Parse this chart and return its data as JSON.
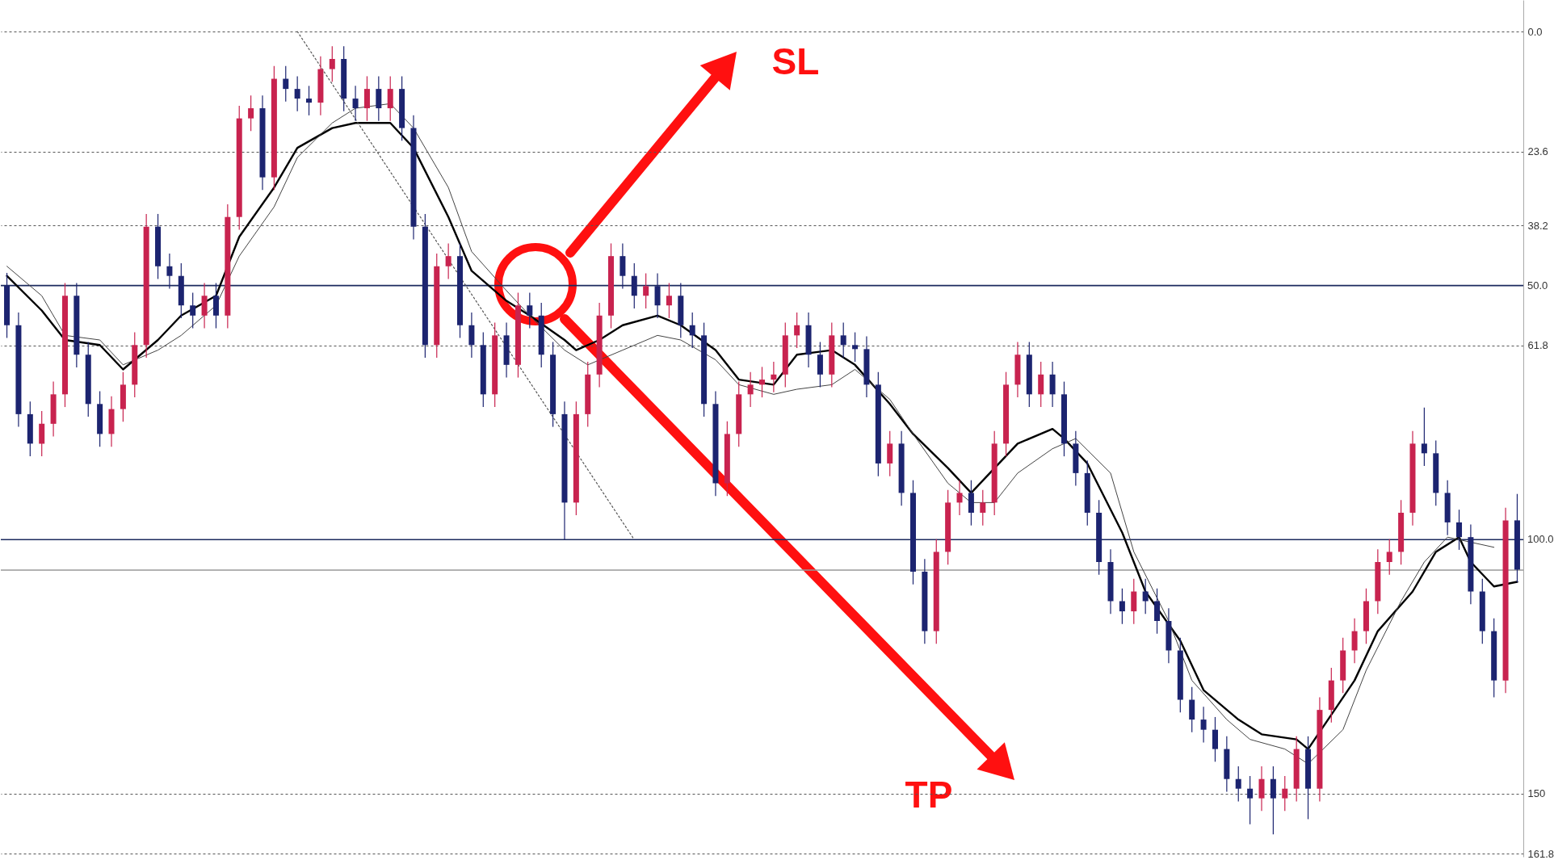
{
  "chart_data": {
    "type": "candlestick",
    "categories": [
      null,
      null,
      null,
      null,
      null,
      null,
      null,
      null,
      null,
      null,
      null,
      null,
      null,
      null,
      null,
      null,
      null,
      null,
      null,
      null,
      null,
      null,
      null,
      null,
      null,
      null,
      null,
      null,
      null,
      null,
      null,
      null,
      null,
      null,
      null,
      null,
      null,
      null,
      null,
      null,
      null,
      null,
      null,
      null,
      null,
      null,
      null,
      null,
      null,
      null,
      null,
      null,
      null,
      null,
      null,
      null,
      null,
      null,
      null,
      null,
      null,
      null,
      null,
      null,
      null,
      null,
      null,
      null,
      null,
      null,
      null,
      null,
      null,
      null,
      null,
      null,
      null,
      null,
      null,
      null,
      null,
      null,
      null,
      null,
      null,
      null,
      null,
      null,
      null,
      null,
      null,
      null,
      null,
      null,
      null,
      null,
      null,
      null,
      null,
      null,
      null,
      null,
      null,
      null,
      null,
      null,
      null,
      null,
      null,
      null,
      null,
      null,
      null,
      null,
      null,
      null,
      null,
      null,
      null,
      null,
      null,
      null,
      null,
      null,
      null,
      null,
      null,
      null,
      null,
      null,
      null
    ],
    "ohlc": [
      [
        50.0,
        60.3,
        47.5,
        57.8
      ],
      [
        57.8,
        77.8,
        55.3,
        75.3
      ],
      [
        75.3,
        83.6,
        72.8,
        81.1
      ],
      [
        81.1,
        83.6,
        74.7,
        77.2
      ],
      [
        77.2,
        79.7,
        68.9,
        71.4
      ],
      [
        71.4,
        73.9,
        49.5,
        52.0
      ],
      [
        52.0,
        66.1,
        49.5,
        63.6
      ],
      [
        63.6,
        75.8,
        61.1,
        73.3
      ],
      [
        73.3,
        81.7,
        70.8,
        79.2
      ],
      [
        79.2,
        81.7,
        71.8,
        74.3
      ],
      [
        74.3,
        76.8,
        67.0,
        69.5
      ],
      [
        69.5,
        72.0,
        59.2,
        61.7
      ],
      [
        61.7,
        64.2,
        35.9,
        38.4
      ],
      [
        38.4,
        48.7,
        35.9,
        46.2
      ],
      [
        46.2,
        50.6,
        43.7,
        48.1
      ],
      [
        48.1,
        56.4,
        45.6,
        53.9
      ],
      [
        53.9,
        58.4,
        51.4,
        55.9
      ],
      [
        55.9,
        58.4,
        49.5,
        52.0
      ],
      [
        52.0,
        58.4,
        49.5,
        55.9
      ],
      [
        55.9,
        58.4,
        34.0,
        36.5
      ],
      [
        36.5,
        39.0,
        14.6,
        17.1
      ],
      [
        17.1,
        19.6,
        12.6,
        15.1
      ],
      [
        15.1,
        31.2,
        12.6,
        28.7
      ],
      [
        28.7,
        31.2,
        6.8,
        9.3
      ],
      [
        9.3,
        13.8,
        6.8,
        11.3
      ],
      [
        11.3,
        15.7,
        8.8,
        13.2
      ],
      [
        13.2,
        16.5,
        10.7,
        14.0
      ],
      [
        14.0,
        16.5,
        4.9,
        7.4
      ],
      [
        7.4,
        9.9,
        2.9,
        5.4
      ],
      [
        5.4,
        15.7,
        2.9,
        13.2
      ],
      [
        13.2,
        17.6,
        10.7,
        15.1
      ],
      [
        15.1,
        17.6,
        8.8,
        11.3
      ],
      [
        11.3,
        17.6,
        8.8,
        15.1
      ],
      [
        15.1,
        17.6,
        8.8,
        11.3
      ],
      [
        11.3,
        21.5,
        8.8,
        19.0
      ],
      [
        19.0,
        40.9,
        16.5,
        38.4
      ],
      [
        38.4,
        64.2,
        35.9,
        61.7
      ],
      [
        61.7,
        64.2,
        43.7,
        46.2
      ],
      [
        46.2,
        48.7,
        41.7,
        44.2
      ],
      [
        44.2,
        60.3,
        41.7,
        57.8
      ],
      [
        57.8,
        64.2,
        55.3,
        61.7
      ],
      [
        61.7,
        73.9,
        59.2,
        71.4
      ],
      [
        71.4,
        73.9,
        57.3,
        59.8
      ],
      [
        59.8,
        68.1,
        57.3,
        65.6
      ],
      [
        65.6,
        68.1,
        51.4,
        53.9
      ],
      [
        53.9,
        58.4,
        51.4,
        55.9
      ],
      [
        55.9,
        66.1,
        53.4,
        63.6
      ],
      [
        63.6,
        77.8,
        61.1,
        75.3
      ],
      [
        75.3,
        100.0,
        72.8,
        92.7
      ],
      [
        92.7,
        95.2,
        72.8,
        75.3
      ],
      [
        75.3,
        77.8,
        65.0,
        67.5
      ],
      [
        67.5,
        70.0,
        53.4,
        55.9
      ],
      [
        55.9,
        58.4,
        41.7,
        44.2
      ],
      [
        44.2,
        50.6,
        41.7,
        48.1
      ],
      [
        48.1,
        54.5,
        45.6,
        52.0
      ],
      [
        52.0,
        54.5,
        47.6,
        50.1
      ],
      [
        50.1,
        56.4,
        47.6,
        53.9
      ],
      [
        53.9,
        56.4,
        49.5,
        52.0
      ],
      [
        52.0,
        60.3,
        49.5,
        57.8
      ],
      [
        57.8,
        62.3,
        55.3,
        59.8
      ],
      [
        59.8,
        75.8,
        57.3,
        73.3
      ],
      [
        73.3,
        91.4,
        70.8,
        88.9
      ],
      [
        88.9,
        91.4,
        76.7,
        79.2
      ],
      [
        79.2,
        81.7,
        68.9,
        71.4
      ],
      [
        71.4,
        73.9,
        67.0,
        69.5
      ],
      [
        69.5,
        72.0,
        66.0,
        68.5
      ],
      [
        68.5,
        71.0,
        65.0,
        67.5
      ],
      [
        67.5,
        70.0,
        57.3,
        59.8
      ],
      [
        59.8,
        62.3,
        55.3,
        57.8
      ],
      [
        57.8,
        66.1,
        55.3,
        63.6
      ],
      [
        63.6,
        70.0,
        61.1,
        67.5
      ],
      [
        67.5,
        70.0,
        57.3,
        59.8
      ],
      [
        59.8,
        64.2,
        57.3,
        61.7
      ],
      [
        61.7,
        65.0,
        59.2,
        62.5
      ],
      [
        62.5,
        72.0,
        60.0,
        69.5
      ],
      [
        69.5,
        87.5,
        67.0,
        85.0
      ],
      [
        85.0,
        87.5,
        78.6,
        81.1
      ],
      [
        81.1,
        93.3,
        78.6,
        90.8
      ],
      [
        90.8,
        108.8,
        88.3,
        106.3
      ],
      [
        106.3,
        120.5,
        103.8,
        118.0
      ],
      [
        118.0,
        120.5,
        99.9,
        102.4
      ],
      [
        102.4,
        104.9,
        90.2,
        92.7
      ],
      [
        92.7,
        95.2,
        88.3,
        90.8
      ],
      [
        90.8,
        97.2,
        88.3,
        94.7
      ],
      [
        94.7,
        97.2,
        90.2,
        92.7
      ],
      [
        92.7,
        95.2,
        78.6,
        81.1
      ],
      [
        81.1,
        83.6,
        67.0,
        69.5
      ],
      [
        69.5,
        72.0,
        61.1,
        63.6
      ],
      [
        63.6,
        73.9,
        61.1,
        71.4
      ],
      [
        71.4,
        73.9,
        65.0,
        67.5
      ],
      [
        67.5,
        73.9,
        65.0,
        71.4
      ],
      [
        71.4,
        83.6,
        68.9,
        81.1
      ],
      [
        81.1,
        89.4,
        78.6,
        86.9
      ],
      [
        86.9,
        97.2,
        84.4,
        94.7
      ],
      [
        94.7,
        106.9,
        92.2,
        104.4
      ],
      [
        104.4,
        114.6,
        101.9,
        112.1
      ],
      [
        112.1,
        116.6,
        109.6,
        114.1
      ],
      [
        114.1,
        116.6,
        107.7,
        110.2
      ],
      [
        110.2,
        114.6,
        107.7,
        112.1
      ],
      [
        112.1,
        118.5,
        109.6,
        116.0
      ],
      [
        116.0,
        124.3,
        113.5,
        121.8
      ],
      [
        121.8,
        134.0,
        119.3,
        131.5
      ],
      [
        131.5,
        137.9,
        129.0,
        135.4
      ],
      [
        135.4,
        139.9,
        132.9,
        137.4
      ],
      [
        137.4,
        143.7,
        134.9,
        141.2
      ],
      [
        141.2,
        149.6,
        138.7,
        147.1
      ],
      [
        147.1,
        151.5,
        144.6,
        149.0
      ],
      [
        149.0,
        156.0,
        146.5,
        150.9
      ],
      [
        150.9,
        153.4,
        144.6,
        147.1
      ],
      [
        147.1,
        158.0,
        144.6,
        150.9
      ],
      [
        150.9,
        153.4,
        146.5,
        149.0
      ],
      [
        149.0,
        151.5,
        138.7,
        141.2
      ],
      [
        141.2,
        155.0,
        138.7,
        149.0
      ],
      [
        149.0,
        151.5,
        131.0,
        133.5
      ],
      [
        133.5,
        136.0,
        125.2,
        127.7
      ],
      [
        127.7,
        130.2,
        119.3,
        121.8
      ],
      [
        121.8,
        124.3,
        115.5,
        118.0
      ],
      [
        118.0,
        120.5,
        109.6,
        112.1
      ],
      [
        112.1,
        114.6,
        101.9,
        104.4
      ],
      [
        104.4,
        106.9,
        99.9,
        102.4
      ],
      [
        102.4,
        104.9,
        92.2,
        94.7
      ],
      [
        94.7,
        97.2,
        78.6,
        81.1
      ],
      [
        81.1,
        85.5,
        74.0,
        83.0
      ],
      [
        83.0,
        93.3,
        80.5,
        90.8
      ],
      [
        90.8,
        99.1,
        88.3,
        96.6
      ],
      [
        96.6,
        102.0,
        94.1,
        99.5
      ],
      [
        99.5,
        112.7,
        97.0,
        110.2
      ],
      [
        110.2,
        120.5,
        107.7,
        118.0
      ],
      [
        118.0,
        131.0,
        115.5,
        127.7
      ],
      [
        127.7,
        130.2,
        93.7,
        96.2
      ],
      [
        96.2,
        108.4,
        91.0,
        105.9
      ]
    ],
    "colors": [
      "#1c2470",
      "#1c2470",
      "#1c2470",
      "#c8234f",
      "#c8234f",
      "#c8234f",
      "#1c2470",
      "#1c2470",
      "#1c2470",
      "#c8234f",
      "#c8234f",
      "#c8234f",
      "#c8234f",
      "#1c2470",
      "#1c2470",
      "#1c2470",
      "#1c2470",
      "#c8234f",
      "#1c2470",
      "#c8234f",
      "#c8234f",
      "#c8234f",
      "#1c2470",
      "#c8234f",
      "#1c2470",
      "#1c2470",
      "#1c2470",
      "#c8234f",
      "#c8234f",
      "#1c2470",
      "#1c2470",
      "#c8234f",
      "#1c2470",
      "#c8234f",
      "#1c2470",
      "#1c2470",
      "#1c2470",
      "#c8234f",
      "#c8234f",
      "#1c2470",
      "#1c2470",
      "#1c2470",
      "#c8234f",
      "#1c2470",
      "#c8234f",
      "#1c2470",
      "#1c2470",
      "#1c2470",
      "#1c2470",
      "#c8234f",
      "#c8234f",
      "#c8234f",
      "#c8234f",
      "#1c2470",
      "#1c2470",
      "#c8234f",
      "#1c2470",
      "#c8234f",
      "#1c2470",
      "#1c2470",
      "#1c2470",
      "#1c2470",
      "#c8234f",
      "#c8234f",
      "#c8234f",
      "#c8234f",
      "#c8234f",
      "#c8234f",
      "#c8234f",
      "#1c2470",
      "#1c2470",
      "#c8234f",
      "#1c2470",
      "#1c2470",
      "#1c2470",
      "#1c2470",
      "#c8234f",
      "#1c2470",
      "#1c2470",
      "#1c2470",
      "#c8234f",
      "#c8234f",
      "#c8234f",
      "#1c2470",
      "#c8234f",
      "#c8234f",
      "#c8234f",
      "#c8234f",
      "#1c2470",
      "#c8234f",
      "#1c2470",
      "#1c2470",
      "#1c2470",
      "#1c2470",
      "#1c2470",
      "#1c2470",
      "#1c2470",
      "#c8234f",
      "#1c2470",
      "#1c2470",
      "#1c2470",
      "#1c2470",
      "#1c2470",
      "#1c2470",
      "#1c2470",
      "#1c2470",
      "#1c2470",
      "#1c2470",
      "#c8234f",
      "#1c2470",
      "#c8234f",
      "#c8234f",
      "#1c2470",
      "#c8234f",
      "#c8234f",
      "#c8234f",
      "#c8234f",
      "#c8234f",
      "#c8234f",
      "#c8234f",
      "#c8234f",
      "#c8234f",
      "#1c2470",
      "#1c2470",
      "#1c2470",
      "#1c2470",
      "#1c2470",
      "#1c2470",
      "#1c2470",
      "#c8234f",
      "#1c2470"
    ],
    "series": [
      {
        "type": "line",
        "color": "#000000",
        "values": [
          48.1,
          null,
          null,
          54.9,
          null,
          60.7,
          null,
          null,
          61.7,
          null,
          66.5,
          null,
          null,
          60.7,
          null,
          55.9,
          null,
          null,
          52.0,
          null,
          40.4,
          null,
          null,
          30.7,
          null,
          22.9,
          null,
          null,
          19.0,
          null,
          18.0,
          null,
          null,
          18.0,
          null,
          22.9,
          null,
          null,
          36.5,
          null,
          47.1,
          null,
          null,
          53.0,
          null,
          55.9,
          null,
          null,
          60.7,
          62.7,
          null,
          60.7,
          null,
          57.8,
          null,
          null,
          55.9,
          null,
          57.8,
          null,
          null,
          62.7,
          null,
          68.5,
          null,
          null,
          69.5,
          null,
          63.6,
          null,
          null,
          62.7,
          null,
          65.6,
          null,
          null,
          73.3,
          null,
          79.2,
          null,
          null,
          85.9,
          null,
          90.8,
          null,
          null,
          null,
          81.1,
          null,
          null,
          78.2,
          80.1,
          null,
          85.0,
          null,
          null,
          98.6,
          null,
          110.2,
          null,
          null,
          119.9,
          null,
          129.6,
          null,
          null,
          135.4,
          null,
          138.3,
          null,
          null,
          139.3,
          141.2,
          null,
          null,
          null,
          127.7,
          null,
          118.0,
          null,
          null,
          110.2,
          null,
          102.4,
          null,
          99.5,
          104.4,
          null,
          109.2,
          null,
          108.3
        ]
      },
      {
        "type": "line",
        "color": "#444444",
        "values": [
          46.2,
          null,
          null,
          52.0,
          null,
          59.8,
          null,
          null,
          60.7,
          null,
          65.6,
          null,
          null,
          62.7,
          null,
          59.8,
          null,
          null,
          53.9,
          null,
          44.2,
          null,
          null,
          34.5,
          null,
          24.8,
          null,
          null,
          18.0,
          null,
          15.1,
          null,
          null,
          14.2,
          null,
          19.0,
          null,
          null,
          30.7,
          null,
          43.3,
          null,
          null,
          51.0,
          null,
          55.9,
          null,
          null,
          62.7,
          null,
          65.6,
          null,
          null,
          62.7,
          null,
          null,
          59.8,
          null,
          60.7,
          null,
          null,
          64.6,
          null,
          69.5,
          null,
          null,
          71.4,
          null,
          70.4,
          null,
          null,
          69.5,
          null,
          66.5,
          null,
          null,
          72.4,
          null,
          79.2,
          null,
          null,
          88.9,
          null,
          92.7,
          null,
          92.7,
          null,
          86.9,
          null,
          null,
          82.1,
          null,
          80.1,
          null,
          null,
          86.9,
          null,
          102.4,
          null,
          null,
          116.0,
          null,
          127.7,
          null,
          null,
          135.4,
          null,
          139.3,
          null,
          null,
          141.2,
          null,
          144.1,
          null,
          null,
          137.4,
          null,
          125.7,
          null,
          null,
          112.1,
          null,
          104.4,
          null,
          99.5,
          null,
          100.5,
          null,
          101.5,
          null,
          null
        ]
      },
      {
        "type": "line",
        "color": "#555555",
        "line_style": "dotted",
        "values": [
          null,
          null,
          null,
          null,
          null,
          null,
          null,
          null,
          null,
          null,
          null,
          null,
          null,
          null,
          null,
          null,
          null,
          null,
          null,
          null,
          null,
          null,
          null,
          null,
          null,
          0,
          null,
          null,
          null,
          null,
          null,
          null,
          null,
          null,
          null,
          null,
          null,
          null,
          null,
          null,
          null,
          null,
          null,
          null,
          null,
          null,
          null,
          null,
          null,
          null,
          null,
          null,
          null,
          null,
          100,
          null,
          null,
          null,
          null,
          null,
          null,
          null,
          null,
          null,
          null,
          null,
          null,
          null,
          null,
          null,
          null,
          null,
          null,
          null,
          null,
          null,
          null,
          null,
          null,
          null,
          null,
          null,
          null,
          null,
          null,
          null,
          null,
          null,
          null,
          null,
          null,
          null,
          null,
          null,
          null,
          null,
          null,
          null,
          null,
          null,
          null,
          null,
          null,
          null,
          null,
          null,
          null,
          null,
          null,
          null,
          null,
          null,
          null,
          null,
          null,
          null,
          null,
          null,
          null,
          null,
          null,
          null,
          null,
          null,
          null,
          null,
          null,
          null,
          null,
          null,
          null
        ]
      }
    ],
    "ylim": [
      162.4,
      -6.2
    ],
    "yticks": [
      {
        "value": 0,
        "label": "0.0"
      },
      23.6,
      38.2,
      61.8,
      150,
      161.8
    ],
    "grid": "y",
    "tick_labels": "y",
    "marker": "none",
    "ref_lines": [
      {
        "axis": "y",
        "value": 50,
        "label": "50.0",
        "color": "#1c2a5e"
      },
      {
        "axis": "y",
        "value": 100,
        "label": "100.0",
        "color": "#1c2a5e"
      },
      {
        "axis": "y",
        "value": 106,
        "color": "#999999"
      }
    ],
    "annotations": [
      "SL",
      "TP"
    ]
  }
}
